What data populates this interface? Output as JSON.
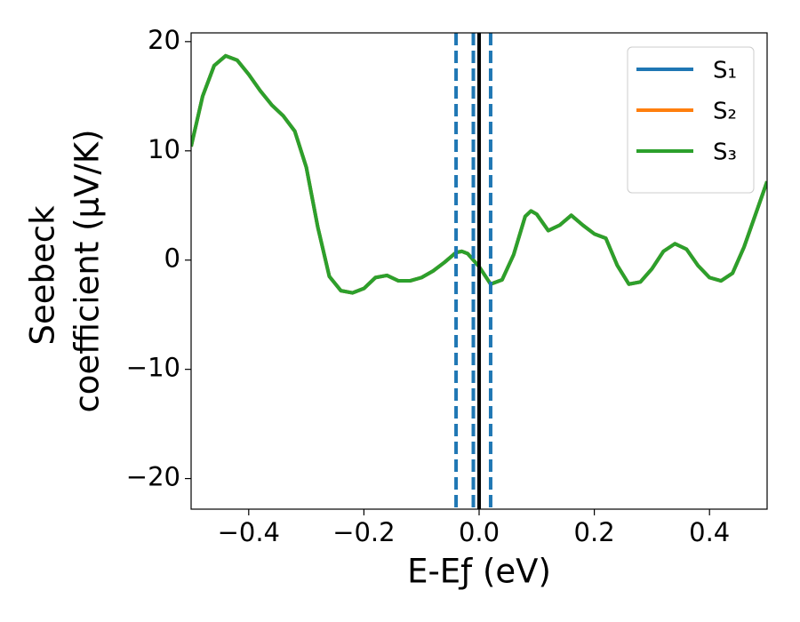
{
  "chart_data": {
    "type": "line",
    "xlabel": "E-Eƒ (eV)",
    "ylabel": [
      "Seebeck",
      "coefficient  (μV/K)"
    ],
    "x": [
      -0.5,
      -0.48,
      -0.46,
      -0.44,
      -0.42,
      -0.4,
      -0.38,
      -0.36,
      -0.34,
      -0.32,
      -0.3,
      -0.28,
      -0.26,
      -0.24,
      -0.22,
      -0.2,
      -0.18,
      -0.16,
      -0.14,
      -0.12,
      -0.1,
      -0.08,
      -0.06,
      -0.04,
      -0.03,
      -0.02,
      0.0,
      0.02,
      0.04,
      0.06,
      0.08,
      0.09,
      0.1,
      0.12,
      0.14,
      0.16,
      0.18,
      0.2,
      0.22,
      0.24,
      0.26,
      0.28,
      0.3,
      0.32,
      0.34,
      0.36,
      0.38,
      0.4,
      0.42,
      0.44,
      0.46,
      0.48,
      0.5
    ],
    "series": [
      {
        "name": "S₁",
        "color": "#1f77b4",
        "values": [
          10.4,
          15,
          17.8,
          18.7,
          18.3,
          17,
          15.5,
          14.2,
          13.2,
          11.8,
          8.5,
          3,
          -1.5,
          -2.8,
          -3.0,
          -2.6,
          -1.6,
          -1.4,
          -1.9,
          -1.9,
          -1.6,
          -1.0,
          -0.2,
          0.7,
          0.8,
          0.6,
          -0.6,
          -2.2,
          -1.8,
          0.5,
          4.0,
          4.5,
          4.2,
          2.7,
          3.2,
          4.1,
          3.2,
          2.4,
          2.0,
          -0.5,
          -2.2,
          -2.0,
          -0.8,
          0.8,
          1.5,
          1.0,
          -0.5,
          -1.6,
          -1.9,
          -1.2,
          1.2,
          4.2,
          7.2
        ]
      },
      {
        "name": "S₂",
        "color": "#ff7f0e",
        "values": [
          10.4,
          15,
          17.8,
          18.7,
          18.3,
          17,
          15.5,
          14.2,
          13.2,
          11.8,
          8.5,
          3,
          -1.5,
          -2.8,
          -3.0,
          -2.6,
          -1.6,
          -1.4,
          -1.9,
          -1.9,
          -1.6,
          -1.0,
          -0.2,
          0.7,
          0.8,
          0.6,
          -0.6,
          -2.2,
          -1.8,
          0.5,
          4.0,
          4.5,
          4.2,
          2.7,
          3.2,
          4.1,
          3.2,
          2.4,
          2.0,
          -0.5,
          -2.2,
          -2.0,
          -0.8,
          0.8,
          1.5,
          1.0,
          -0.5,
          -1.6,
          -1.9,
          -1.2,
          1.2,
          4.2,
          7.2
        ]
      },
      {
        "name": "S₃",
        "color": "#2ca02c",
        "values": [
          10.4,
          15,
          17.8,
          18.7,
          18.3,
          17,
          15.5,
          14.2,
          13.2,
          11.8,
          8.5,
          3,
          -1.5,
          -2.8,
          -3.0,
          -2.6,
          -1.6,
          -1.4,
          -1.9,
          -1.9,
          -1.6,
          -1.0,
          -0.2,
          0.7,
          0.8,
          0.6,
          -0.6,
          -2.2,
          -1.8,
          0.5,
          4.0,
          4.5,
          4.2,
          2.7,
          3.2,
          4.1,
          3.2,
          2.4,
          2.0,
          -0.5,
          -2.2,
          -2.0,
          -0.8,
          0.8,
          1.5,
          1.0,
          -0.5,
          -1.6,
          -1.9,
          -1.2,
          1.2,
          4.2,
          7.2
        ]
      }
    ],
    "vlines": [
      {
        "x": -0.04,
        "color": "#1f77b4",
        "dashed": true
      },
      {
        "x": -0.01,
        "color": "#1f77b4",
        "dashed": true
      },
      {
        "x": 0.0,
        "color": "#000000",
        "dashed": false
      },
      {
        "x": 0.02,
        "color": "#1f77b4",
        "dashed": true
      }
    ],
    "xlim": [
      -0.5,
      0.5
    ],
    "xticks": [
      {
        "value": -0.4,
        "label": "−0.4"
      },
      {
        "value": -0.2,
        "label": "−0.2"
      },
      {
        "value": 0.0,
        "label": "0.0"
      },
      0.2,
      0.4
    ],
    "ylim": [
      -22.8,
      20.8
    ],
    "yticks": [
      {
        "value": -20,
        "label": "−20"
      },
      {
        "value": -10,
        "label": "−10"
      },
      0,
      10,
      20
    ],
    "grid": false,
    "legend": "upper right"
  }
}
